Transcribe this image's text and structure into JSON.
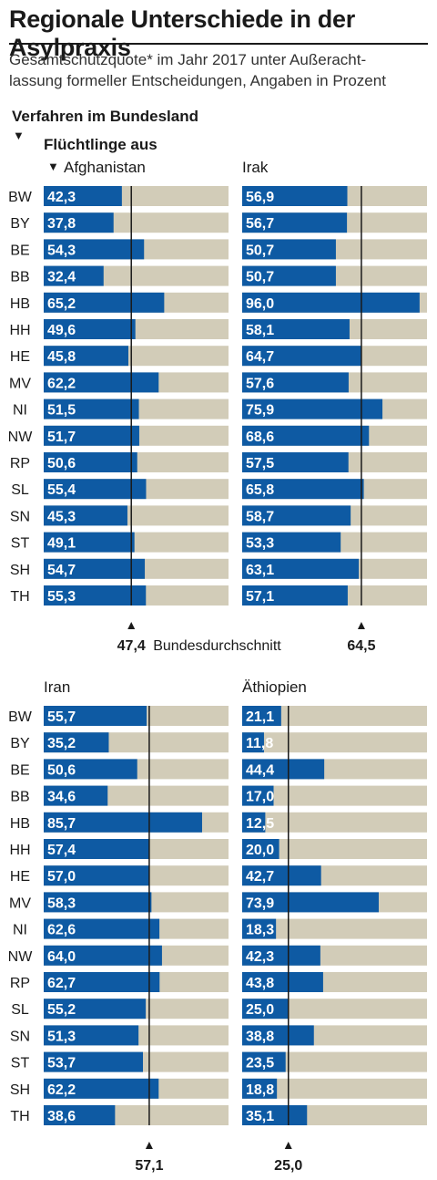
{
  "header": {
    "title": "Regionale Unterschiede in der Asylpraxis",
    "subtitle_line1": "Gesamtschutzquote* im Jahr 2017 unter Außeracht-",
    "subtitle_line2": "lassung formeller Entscheidungen, Angaben in Prozent",
    "label_procedure": "Verfahren im Bundesland",
    "label_refugees": "Flüchtlinge aus"
  },
  "colors": {
    "bar": "#0e5aa3",
    "track": "#d2ccb8",
    "text_on_bar": "#ffffff"
  },
  "chart_data": [
    {
      "type": "bar",
      "title": "Afghanistan",
      "categories": [
        "BW",
        "BY",
        "BE",
        "BB",
        "HB",
        "HH",
        "HE",
        "MV",
        "NI",
        "NW",
        "RP",
        "SL",
        "SN",
        "ST",
        "SH",
        "TH"
      ],
      "values": [
        42.3,
        37.8,
        54.3,
        32.4,
        65.2,
        49.6,
        45.8,
        62.2,
        51.5,
        51.7,
        50.6,
        55.4,
        45.3,
        49.1,
        54.7,
        55.3
      ],
      "labels": [
        "42,3",
        "37,8",
        "54,3",
        "32,4",
        "65,2",
        "49,6",
        "45,8",
        "62,2",
        "51,5",
        "51,7",
        "50,6",
        "55,4",
        "45,3",
        "49,1",
        "54,7",
        "55,3"
      ],
      "average": 47.4,
      "average_label": "47,4",
      "average_caption": "Bundesdurchschnitt",
      "ylim": [
        0,
        100
      ]
    },
    {
      "type": "bar",
      "title": "Irak",
      "categories": [
        "BW",
        "BY",
        "BE",
        "BB",
        "HB",
        "HH",
        "HE",
        "MV",
        "NI",
        "NW",
        "RP",
        "SL",
        "SN",
        "ST",
        "SH",
        "TH"
      ],
      "values": [
        56.9,
        56.7,
        50.7,
        50.7,
        96.0,
        58.1,
        64.7,
        57.6,
        75.9,
        68.6,
        57.5,
        65.8,
        58.7,
        53.3,
        63.1,
        57.1
      ],
      "labels": [
        "56,9",
        "56,7",
        "50,7",
        "50,7",
        "96,0",
        "58,1",
        "64,7",
        "57,6",
        "75,9",
        "68,6",
        "57,5",
        "65,8",
        "58,7",
        "53,3",
        "63,1",
        "57,1"
      ],
      "average": 64.5,
      "average_label": "64,5",
      "ylim": [
        0,
        100
      ]
    },
    {
      "type": "bar",
      "title": "Iran",
      "categories": [
        "BW",
        "BY",
        "BE",
        "BB",
        "HB",
        "HH",
        "HE",
        "MV",
        "NI",
        "NW",
        "RP",
        "SL",
        "SN",
        "ST",
        "SH",
        "TH"
      ],
      "values": [
        55.7,
        35.2,
        50.6,
        34.6,
        85.7,
        57.4,
        57.0,
        58.3,
        62.6,
        64.0,
        62.7,
        55.2,
        51.3,
        53.7,
        62.2,
        38.6
      ],
      "labels": [
        "55,7",
        "35,2",
        "50,6",
        "34,6",
        "85,7",
        "57,4",
        "57,0",
        "58,3",
        "62,6",
        "64,0",
        "62,7",
        "55,2",
        "51,3",
        "53,7",
        "62,2",
        "38,6"
      ],
      "average": 57.1,
      "average_label": "57,1",
      "ylim": [
        0,
        100
      ]
    },
    {
      "type": "bar",
      "title": "Äthiopien",
      "categories": [
        "BW",
        "BY",
        "BE",
        "BB",
        "HB",
        "HH",
        "HE",
        "MV",
        "NI",
        "NW",
        "RP",
        "SL",
        "SN",
        "ST",
        "SH",
        "TH"
      ],
      "values": [
        21.1,
        11.8,
        44.4,
        17.0,
        12.5,
        20.0,
        42.7,
        73.9,
        18.3,
        42.3,
        43.8,
        25.0,
        38.8,
        23.5,
        18.8,
        35.1
      ],
      "labels": [
        "21,1",
        "11,8",
        "44,4",
        "17,0",
        "12,5",
        "20,0",
        "42,7",
        "73,9",
        "18,3",
        "42,3",
        "43,8",
        "25,0",
        "38,8",
        "23,5",
        "18,8",
        "35,1"
      ],
      "average": 25.0,
      "average_label": "25,0",
      "ylim": [
        0,
        100
      ]
    }
  ]
}
